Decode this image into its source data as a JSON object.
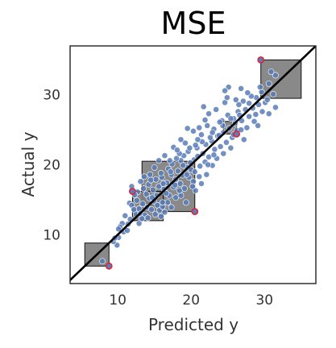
{
  "chart_data": {
    "type": "scatter",
    "title": "MSE",
    "xlabel": "Predicted y",
    "ylabel": "Actual y",
    "xlim": [
      3.5,
      37
    ],
    "ylim": [
      3,
      37
    ],
    "xticks": [
      10,
      20,
      30
    ],
    "yticks": [
      10,
      20,
      30
    ],
    "grid": false,
    "reference_line": "y = x",
    "colors": {
      "points": "#5b7db8",
      "squares": "#7f7f7f",
      "highlight": "#e0223a",
      "line": "#000000"
    },
    "points": [
      [
        7.9,
        6.2
      ],
      [
        9.9,
        8.5
      ],
      [
        10.1,
        9.6
      ],
      [
        9.4,
        9.0
      ],
      [
        10.6,
        11.6
      ],
      [
        10.3,
        11.1
      ],
      [
        11.4,
        11.5
      ],
      [
        11.0,
        12.7
      ],
      [
        11.6,
        14.5
      ],
      [
        11.9,
        14.2
      ],
      [
        12.5,
        12.9
      ],
      [
        12.9,
        13.7
      ],
      [
        13.1,
        13.0
      ],
      [
        13.4,
        14.4
      ],
      [
        13.7,
        12.8
      ],
      [
        14.0,
        13.9
      ],
      [
        14.3,
        15.2
      ],
      [
        14.6,
        13.6
      ],
      [
        14.9,
        14.8
      ],
      [
        15.1,
        12.9
      ],
      [
        15.4,
        14.2
      ],
      [
        15.7,
        13.5
      ],
      [
        16.1,
        14.0
      ],
      [
        16.4,
        13.2
      ],
      [
        16.8,
        14.6
      ],
      [
        12.7,
        16.1
      ],
      [
        13.5,
        16.6
      ],
      [
        14.2,
        17.2
      ],
      [
        14.8,
        16.4
      ],
      [
        15.2,
        17.9
      ],
      [
        15.6,
        16.9
      ],
      [
        16.0,
        18.2
      ],
      [
        16.3,
        16.5
      ],
      [
        16.7,
        17.4
      ],
      [
        17.0,
        15.6
      ],
      [
        17.3,
        18.6
      ],
      [
        17.6,
        16.8
      ],
      [
        17.9,
        17.9
      ],
      [
        18.2,
        19.1
      ],
      [
        18.5,
        17.3
      ],
      [
        18.8,
        18.5
      ],
      [
        19.1,
        16.6
      ],
      [
        19.4,
        19.6
      ],
      [
        19.7,
        18.2
      ],
      [
        20.0,
        19.3
      ],
      [
        20.3,
        17.6
      ],
      [
        19.0,
        21.3
      ],
      [
        18.6,
        20.6
      ],
      [
        17.4,
        20.1
      ],
      [
        16.9,
        19.4
      ],
      [
        18.0,
        20.9
      ],
      [
        19.6,
        21.9
      ],
      [
        20.4,
        20.7
      ],
      [
        20.8,
        22.4
      ],
      [
        21.2,
        19.8
      ],
      [
        21.6,
        21.6
      ],
      [
        22.0,
        22.9
      ],
      [
        22.4,
        21.1
      ],
      [
        22.8,
        23.4
      ],
      [
        23.2,
        22.2
      ],
      [
        23.6,
        24.1
      ],
      [
        24.0,
        22.6
      ],
      [
        24.4,
        24.6
      ],
      [
        24.8,
        23.2
      ],
      [
        25.2,
        25.2
      ],
      [
        25.6,
        23.9
      ],
      [
        26.0,
        25.9
      ],
      [
        20.3,
        24.8
      ],
      [
        21.4,
        24.3
      ],
      [
        22.2,
        25.6
      ],
      [
        23.1,
        25.1
      ],
      [
        24.2,
        26.3
      ],
      [
        25.0,
        27.1
      ],
      [
        25.8,
        26.6
      ],
      [
        26.4,
        27.6
      ],
      [
        26.9,
        26.3
      ],
      [
        27.4,
        27.9
      ],
      [
        27.9,
        26.9
      ],
      [
        28.4,
        28.1
      ],
      [
        28.8,
        27.2
      ],
      [
        29.2,
        28.6
      ],
      [
        29.7,
        27.6
      ],
      [
        30.1,
        28.9
      ],
      [
        30.6,
        27.3
      ],
      [
        31.5,
        28.2
      ],
      [
        31.2,
        30.1
      ],
      [
        30.6,
        31.6
      ],
      [
        30.9,
        33.3
      ],
      [
        31.5,
        32.8
      ],
      [
        29.6,
        30.4
      ],
      [
        28.9,
        29.6
      ],
      [
        27.1,
        29.1
      ],
      [
        26.5,
        28.6
      ],
      [
        27.6,
        25.3
      ],
      [
        26.2,
        24.9
      ],
      [
        24.6,
        28.9
      ],
      [
        22.4,
        27.3
      ],
      [
        21.9,
        26.4
      ],
      [
        21.1,
        25.3
      ],
      [
        23.8,
        24.2
      ],
      [
        21.5,
        23.3
      ],
      [
        22.6,
        23.9
      ],
      [
        20.6,
        22.8
      ],
      [
        19.2,
        23.1
      ],
      [
        18.6,
        23.6
      ],
      [
        17.6,
        22.5
      ],
      [
        18.4,
        21.6
      ],
      [
        16.4,
        21.3
      ],
      [
        15.6,
        20.6
      ],
      [
        15.0,
        19.6
      ],
      [
        14.4,
        18.6
      ],
      [
        13.6,
        18.3
      ],
      [
        13.1,
        17.6
      ],
      [
        12.3,
        15.7
      ],
      [
        11.9,
        16.9
      ],
      [
        14.1,
        12.4
      ],
      [
        15.9,
        12.6
      ],
      [
        17.3,
        13.9
      ],
      [
        17.9,
        15.3
      ],
      [
        18.6,
        15.6
      ],
      [
        19.3,
        14.6
      ],
      [
        20.6,
        16.3
      ],
      [
        21.4,
        17.3
      ],
      [
        22.1,
        18.6
      ],
      [
        21.9,
        20.4
      ],
      [
        22.9,
        19.9
      ],
      [
        23.5,
        20.9
      ],
      [
        24.4,
        21.6
      ],
      [
        25.4,
        22.4
      ],
      [
        25.8,
        24.3
      ],
      [
        26.8,
        25.0
      ],
      [
        27.2,
        23.6
      ],
      [
        24.3,
        25.6
      ],
      [
        26.1,
        29.3
      ],
      [
        25.1,
        31.1
      ],
      [
        24.6,
        30.6
      ],
      [
        23.4,
        27.9
      ],
      [
        26.6,
        27.1
      ],
      [
        28.2,
        29.8
      ],
      [
        29.1,
        25.6
      ],
      [
        30.4,
        29.3
      ],
      [
        28.6,
        26.2
      ],
      [
        27.9,
        28.8
      ],
      [
        16.2,
        17.3
      ],
      [
        17.2,
        19.0
      ],
      [
        19.9,
        20.3
      ],
      [
        20.9,
        21.2
      ],
      [
        18.9,
        19.9
      ],
      [
        19.4,
        18.6
      ],
      [
        20.5,
        19.0
      ],
      [
        17.8,
        17.1
      ],
      [
        16.6,
        15.9
      ],
      [
        15.3,
        15.6
      ],
      [
        14.7,
        15.3
      ],
      [
        13.9,
        15.8
      ],
      [
        12.2,
        13.6
      ],
      [
        11.7,
        12.2
      ],
      [
        10.8,
        10.4
      ],
      [
        10.1,
        10.8
      ],
      [
        12.6,
        14.9
      ],
      [
        14.5,
        17.8
      ],
      [
        15.9,
        18.8
      ],
      [
        17.1,
        20.6
      ],
      [
        18.1,
        22.1
      ],
      [
        19.8,
        22.4
      ],
      [
        20.9,
        23.6
      ],
      [
        22.9,
        24.6
      ],
      [
        23.9,
        26.1
      ],
      [
        25.4,
        26.6
      ],
      [
        27.7,
        30.3
      ],
      [
        29.4,
        31.1
      ],
      [
        26.8,
        30.9
      ],
      [
        24.9,
        29.6
      ],
      [
        19.5,
        25.2
      ],
      [
        21.7,
        28.3
      ],
      [
        23.1,
        21.4
      ],
      [
        22.3,
        20.0
      ],
      [
        21.1,
        18.3
      ],
      [
        20.2,
        16.9
      ],
      [
        18.4,
        16.3
      ],
      [
        16.1,
        14.6
      ],
      [
        13.3,
        12.3
      ],
      [
        12.9,
        11.6
      ],
      [
        11.3,
        10.6
      ],
      [
        9.6,
        9.5
      ]
    ],
    "squares": [
      {
        "pred": 29.5,
        "actual": 35.0
      },
      {
        "pred": 26.2,
        "actual": 24.4
      },
      {
        "pred": 20.5,
        "actual": 13.3
      },
      {
        "pred": 12.0,
        "actual": 16.2
      },
      {
        "pred": 8.8,
        "actual": 5.5
      }
    ]
  }
}
